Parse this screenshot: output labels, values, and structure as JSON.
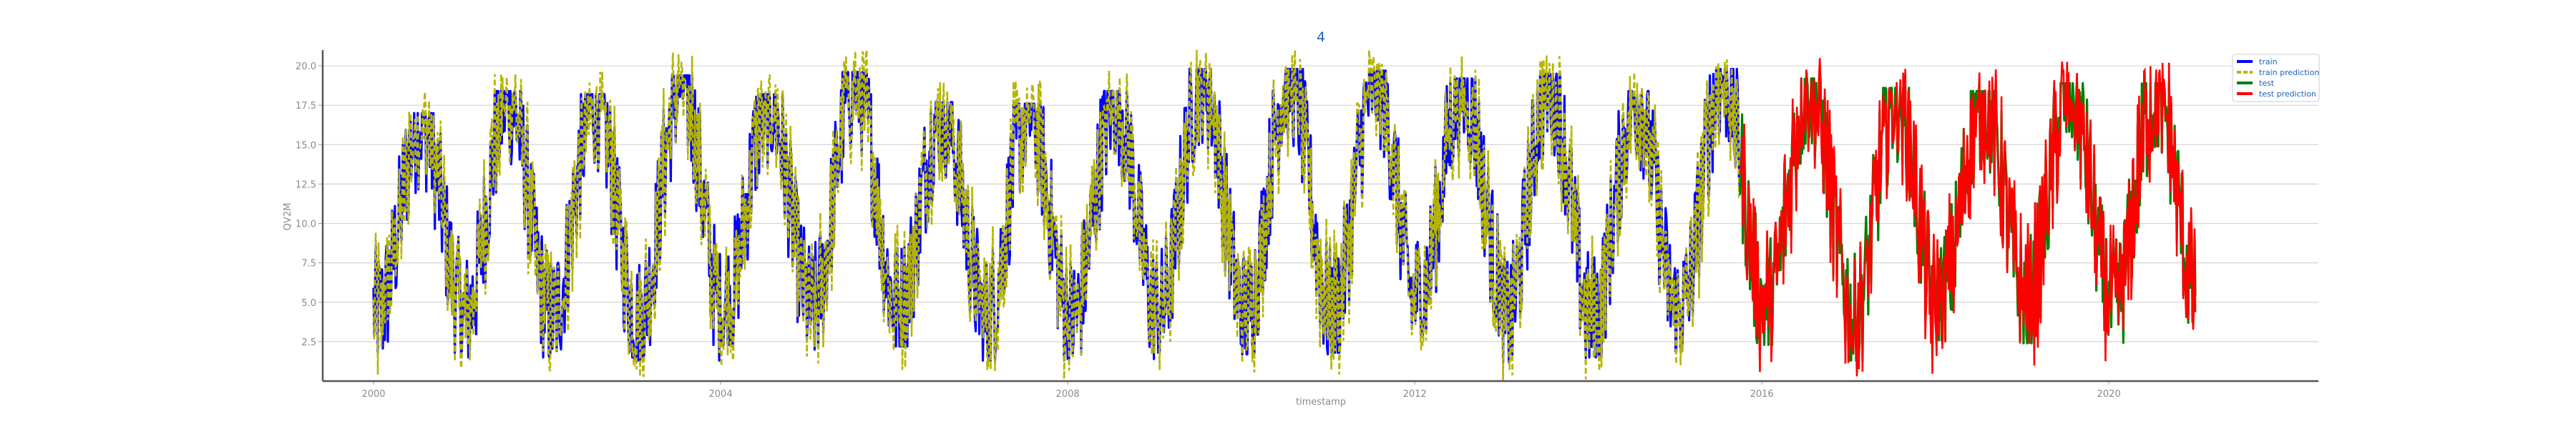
{
  "chart_data": {
    "type": "line",
    "title": "4",
    "xlabel": "timestamp",
    "ylabel": "QV2M",
    "x_range": [
      "1999-06-01",
      "2022-06-01"
    ],
    "ylim": [
      0,
      21
    ],
    "x_ticks": [
      "2000",
      "2004",
      "2008",
      "2012",
      "2016",
      "2020"
    ],
    "y_ticks": [
      "2.5",
      "5.0",
      "7.5",
      "10.0",
      "12.5",
      "15.0",
      "17.5",
      "20.0"
    ],
    "grid": "horizontal",
    "legend_position": "top-right",
    "train_period": [
      "2000-01-01",
      "2015-09-30"
    ],
    "test_period": [
      "2015-10-01",
      "2020-12-31"
    ],
    "seasonal_extremes": [
      {
        "year": 2000,
        "summer_peak": 17.0,
        "winter_low": 1.8
      },
      {
        "year": 2001,
        "summer_peak": 18.4,
        "winter_low": 1.5
      },
      {
        "year": 2002,
        "summer_peak": 18.2,
        "winter_low": 1.5
      },
      {
        "year": 2003,
        "summer_peak": 19.4,
        "winter_low": 1.3
      },
      {
        "year": 2004,
        "summer_peak": 18.2,
        "winter_low": 2.3
      },
      {
        "year": 2005,
        "summer_peak": 19.6,
        "winter_low": 2.0
      },
      {
        "year": 2006,
        "summer_peak": 17.7,
        "winter_low": 2.2
      },
      {
        "year": 2007,
        "summer_peak": 17.6,
        "winter_low": 1.3
      },
      {
        "year": 2008,
        "summer_peak": 18.4,
        "winter_low": 1.4
      },
      {
        "year": 2009,
        "summer_peak": 19.8,
        "winter_low": 1.8
      },
      {
        "year": 2010,
        "summer_peak": 19.8,
        "winter_low": 1.7
      },
      {
        "year": 2011,
        "summer_peak": 19.7,
        "winter_low": 1.8
      },
      {
        "year": 2012,
        "summer_peak": 19.2,
        "winter_low": 2.9
      },
      {
        "year": 2013,
        "summer_peak": 19.5,
        "winter_low": 1.2
      },
      {
        "year": 2014,
        "summer_peak": 18.4,
        "winter_low": 1.5
      },
      {
        "year": 2015,
        "summer_peak": 19.8,
        "winter_low": 1.9
      },
      {
        "year": 2016,
        "summer_peak": 19.2,
        "winter_low": 2.3
      },
      {
        "year": 2017,
        "summer_peak": 18.6,
        "winter_low": 1.3
      },
      {
        "year": 2018,
        "summer_peak": 18.4,
        "winter_low": 2.6
      },
      {
        "year": 2019,
        "summer_peak": 18.9,
        "winter_low": 2.4
      },
      {
        "year": 2020,
        "summer_peak": 18.9,
        "winter_low": 2.2
      }
    ],
    "series": [
      {
        "name": "train",
        "color": "#0000ff",
        "style": "solid"
      },
      {
        "name": "train prediction",
        "color": "#b5b500",
        "style": "dashed"
      },
      {
        "name": "test",
        "color": "#008000",
        "style": "solid"
      },
      {
        "name": "test prediction",
        "color": "#ff0000",
        "style": "solid"
      }
    ]
  }
}
